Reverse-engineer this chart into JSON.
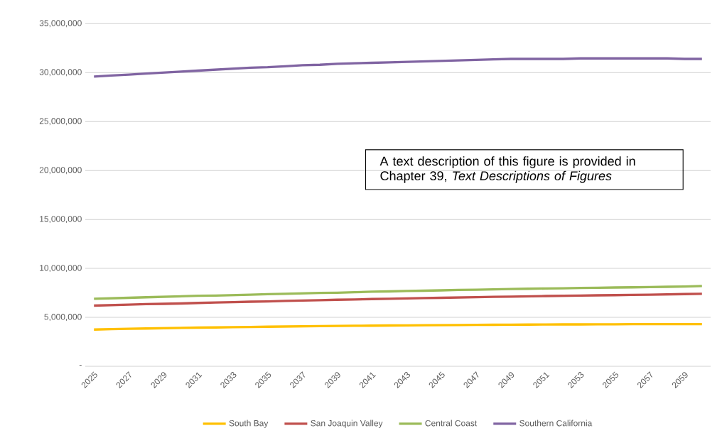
{
  "chart_data": {
    "type": "line",
    "categories": [
      "2025",
      null,
      "2027",
      null,
      "2029",
      null,
      "2031",
      null,
      "2033",
      null,
      "2035",
      null,
      "2037",
      null,
      "2039",
      null,
      "2041",
      null,
      "2043",
      null,
      "2045",
      null,
      "2047",
      null,
      "2049",
      null,
      "2051",
      null,
      "2053",
      null,
      "2055",
      null,
      "2057",
      null,
      "2059",
      null
    ],
    "series": [
      {
        "name": "South Bay",
        "color": "#ffc000",
        "values": [
          3750000,
          3800000,
          3830000,
          3860000,
          3890000,
          3920000,
          3950000,
          3970000,
          4000000,
          4020000,
          4040000,
          4060000,
          4080000,
          4100000,
          4120000,
          4140000,
          4150000,
          4170000,
          4180000,
          4200000,
          4210000,
          4220000,
          4230000,
          4240000,
          4250000,
          4260000,
          4270000,
          4280000,
          4280000,
          4290000,
          4290000,
          4300000,
          4300000,
          4300000,
          4300000,
          4300000
        ]
      },
      {
        "name": "San Joaquin Valley",
        "color": "#c0504d",
        "values": [
          6200000,
          6250000,
          6300000,
          6350000,
          6380000,
          6420000,
          6470000,
          6520000,
          6550000,
          6600000,
          6630000,
          6680000,
          6720000,
          6750000,
          6800000,
          6830000,
          6870000,
          6900000,
          6940000,
          6970000,
          7000000,
          7030000,
          7060000,
          7100000,
          7120000,
          7150000,
          7180000,
          7200000,
          7220000,
          7250000,
          7270000,
          7300000,
          7320000,
          7350000,
          7380000,
          7400000
        ]
      },
      {
        "name": "Central Coast",
        "color": "#9bbb59",
        "values": [
          6900000,
          6950000,
          7000000,
          7050000,
          7100000,
          7150000,
          7200000,
          7220000,
          7270000,
          7320000,
          7370000,
          7400000,
          7450000,
          7500000,
          7520000,
          7570000,
          7620000,
          7650000,
          7700000,
          7720000,
          7760000,
          7800000,
          7820000,
          7860000,
          7900000,
          7920000,
          7950000,
          7970000,
          8000000,
          8020000,
          8050000,
          8070000,
          8100000,
          8120000,
          8150000,
          8200000
        ]
      },
      {
        "name": "Southern California",
        "color": "#8064a2",
        "values": [
          29600000,
          29700000,
          29800000,
          29900000,
          30000000,
          30100000,
          30200000,
          30300000,
          30400000,
          30500000,
          30550000,
          30650000,
          30750000,
          30800000,
          30900000,
          30950000,
          31000000,
          31050000,
          31100000,
          31150000,
          31200000,
          31250000,
          31300000,
          31350000,
          31400000,
          31400000,
          31400000,
          31400000,
          31450000,
          31450000,
          31450000,
          31450000,
          31450000,
          31450000,
          31400000,
          31400000
        ]
      }
    ],
    "ylim": [
      0,
      35000000
    ],
    "yticks": [
      {
        "value": 0,
        "label": "-"
      },
      {
        "value": 5000000,
        "label": "5,000,000"
      },
      {
        "value": 10000000,
        "label": "10,000,000"
      },
      {
        "value": 15000000,
        "label": "15,000,000"
      },
      {
        "value": 20000000,
        "label": "20,000,000"
      },
      {
        "value": 25000000,
        "label": "25,000,000"
      },
      {
        "value": 30000000,
        "label": "30,000,000"
      },
      {
        "value": 35000000,
        "label": "35,000,000"
      }
    ],
    "grid": "y",
    "legend": "bottom",
    "marker": "none",
    "line_style": "solid",
    "annotations": [
      "A text description of this figure is provided in Chapter 39, *Text Descriptions of Figures*"
    ]
  }
}
